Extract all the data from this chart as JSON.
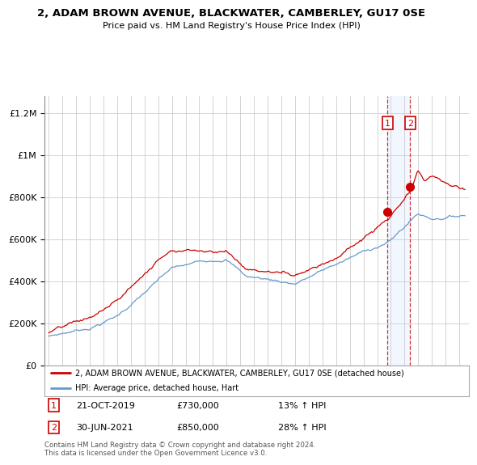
{
  "title": "2, ADAM BROWN AVENUE, BLACKWATER, CAMBERLEY, GU17 0SE",
  "subtitle": "Price paid vs. HM Land Registry's House Price Index (HPI)",
  "legend_line1": "2, ADAM BROWN AVENUE, BLACKWATER, CAMBERLEY, GU17 0SE (detached house)",
  "legend_line2": "HPI: Average price, detached house, Hart",
  "annotation1_date": "21-OCT-2019",
  "annotation1_price": "£730,000",
  "annotation1_hpi": "13% ↑ HPI",
  "annotation2_date": "30-JUN-2021",
  "annotation2_price": "£850,000",
  "annotation2_hpi": "28% ↑ HPI",
  "footer": "Contains HM Land Registry data © Crown copyright and database right 2024.\nThis data is licensed under the Open Government Licence v3.0.",
  "house_color": "#cc0000",
  "hpi_color": "#6699cc",
  "sale1_year": 2019,
  "sale1_month": 10,
  "sale1_y": 730000,
  "sale2_year": 2021,
  "sale2_month": 6,
  "sale2_y": 850000,
  "ylim": [
    0,
    1280000
  ],
  "xlim_start_year": 1995,
  "xlim_start_month": 1,
  "xlim_end_year": 2025,
  "xlim_end_month": 6
}
